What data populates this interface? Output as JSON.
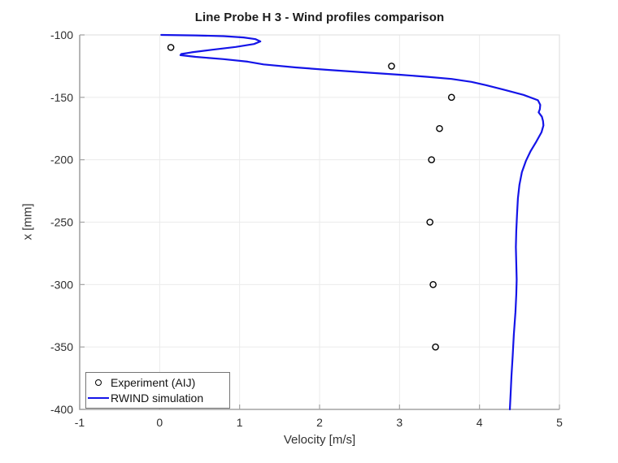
{
  "chart_data": {
    "type": "line",
    "title": "Line Probe H 3 - Wind profiles comparison",
    "xlabel": "Velocity [m/s]",
    "ylabel": "x [mm]",
    "xlim": [
      -1,
      5
    ],
    "ylim": [
      -400,
      -100
    ],
    "y_axis_orientation": "top is -100, bottom is -400",
    "x_ticks": [
      -1,
      0,
      1,
      2,
      3,
      4,
      5
    ],
    "y_ticks": [
      -100,
      -150,
      -200,
      -250,
      -300,
      -350,
      -400
    ],
    "grid": true,
    "legend_position": "bottom-left inside plot",
    "series": [
      {
        "name": "Experiment (AIJ)",
        "type": "scatter",
        "marker": "open-circle",
        "color": "#000000",
        "points": [
          [
            0.14,
            -110
          ],
          [
            2.9,
            -125
          ],
          [
            3.65,
            -150
          ],
          [
            3.5,
            -175
          ],
          [
            3.4,
            -200
          ],
          [
            3.38,
            -250
          ],
          [
            3.42,
            -300
          ],
          [
            3.45,
            -350
          ]
        ]
      },
      {
        "name": "RWIND simulation",
        "type": "line",
        "color": "#1414e8",
        "points": [
          [
            0.02,
            -100
          ],
          [
            0.45,
            -100.4
          ],
          [
            0.8,
            -101
          ],
          [
            1.05,
            -102
          ],
          [
            1.2,
            -103.4
          ],
          [
            1.26,
            -105.2
          ],
          [
            1.18,
            -107.3
          ],
          [
            0.95,
            -109.6
          ],
          [
            0.65,
            -111.9
          ],
          [
            0.4,
            -113.9
          ],
          [
            0.27,
            -115.3
          ],
          [
            0.26,
            -116.2
          ],
          [
            0.45,
            -117.6
          ],
          [
            0.8,
            -119.4
          ],
          [
            1.1,
            -121.4
          ],
          [
            1.3,
            -123.6
          ],
          [
            1.7,
            -126
          ],
          [
            2.1,
            -128
          ],
          [
            2.6,
            -130.2
          ],
          [
            3.0,
            -131.9
          ],
          [
            3.35,
            -133.6
          ],
          [
            3.65,
            -135.3
          ],
          [
            3.9,
            -137.6
          ],
          [
            4.08,
            -140.2
          ],
          [
            4.3,
            -143.8
          ],
          [
            4.55,
            -148
          ],
          [
            4.73,
            -152.3
          ],
          [
            4.76,
            -156
          ],
          [
            4.755,
            -159.5
          ],
          [
            4.74,
            -162
          ],
          [
            4.78,
            -165.5
          ],
          [
            4.795,
            -169
          ],
          [
            4.8,
            -172.5
          ],
          [
            4.775,
            -178
          ],
          [
            4.71,
            -185.5
          ],
          [
            4.64,
            -193
          ],
          [
            4.58,
            -201
          ],
          [
            4.53,
            -210
          ],
          [
            4.5,
            -220
          ],
          [
            4.48,
            -231
          ],
          [
            4.47,
            -243
          ],
          [
            4.46,
            -257
          ],
          [
            4.455,
            -270
          ],
          [
            4.46,
            -283
          ],
          [
            4.465,
            -296
          ],
          [
            4.46,
            -308
          ],
          [
            4.45,
            -322
          ],
          [
            4.43,
            -340
          ],
          [
            4.415,
            -357
          ],
          [
            4.4,
            -373
          ],
          [
            4.39,
            -387
          ],
          [
            4.38,
            -400
          ]
        ]
      }
    ],
    "colors": {
      "grid": "#ebebeb",
      "axis_main": "#a3a3a3",
      "axis_box_light": "#e3e3e3",
      "tick_label": "#2e2e2e",
      "title": "#1c1c1c",
      "axis_label": "#333333"
    }
  }
}
